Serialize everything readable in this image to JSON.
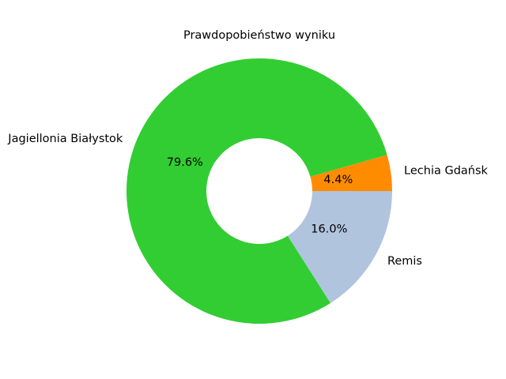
{
  "chart_data": {
    "type": "pie",
    "donut": true,
    "title": "Prawdopobieństwo wyniku",
    "start_angle_deg": 0,
    "direction": "counterclockwise",
    "slices": [
      {
        "label": "Lechia Gdańsk",
        "value": 4.4,
        "pct_label": "4.4%",
        "color": "#FF8C00"
      },
      {
        "label": "Jagiellonia Białystok",
        "value": 79.6,
        "pct_label": "79.6%",
        "color": "#32CD32"
      },
      {
        "label": "Remis",
        "value": 16.0,
        "pct_label": "16.0%",
        "color": "#B0C4DE"
      }
    ],
    "legend": "none",
    "grid": false
  }
}
